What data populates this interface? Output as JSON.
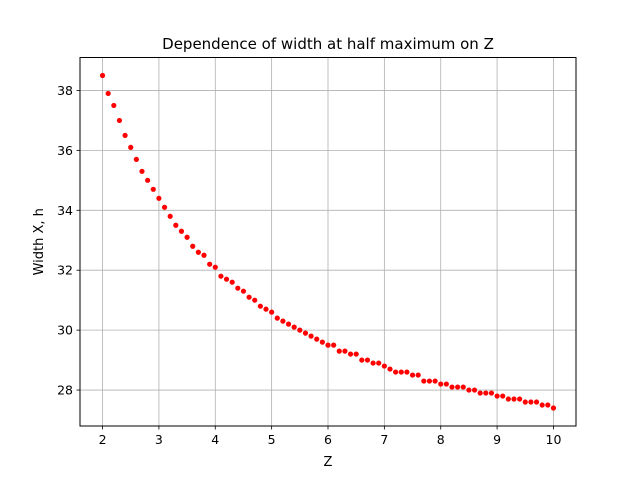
{
  "chart_data": {
    "type": "scatter",
    "title": "Dependence of width at half maximum on Z",
    "xlabel": "Z",
    "ylabel": "Width X, h",
    "xlim": [
      1.6,
      10.4
    ],
    "ylim": [
      26.8,
      39.1
    ],
    "xticks": [
      2,
      3,
      4,
      5,
      6,
      7,
      8,
      9,
      10
    ],
    "yticks": [
      28,
      30,
      32,
      34,
      36,
      38
    ],
    "grid": true,
    "marker_color": "#ff0000",
    "series": [
      {
        "x": [
          2.0,
          2.1,
          2.2,
          2.3,
          2.4,
          2.5,
          2.6,
          2.7,
          2.8,
          2.9,
          3.0,
          3.1,
          3.2,
          3.3,
          3.4,
          3.5,
          3.6,
          3.7,
          3.8,
          3.9,
          4.0,
          4.1,
          4.2,
          4.3,
          4.4,
          4.5,
          4.6,
          4.7,
          4.8,
          4.9,
          5.0,
          5.1,
          5.2,
          5.3,
          5.4,
          5.5,
          5.6,
          5.7,
          5.8,
          5.9,
          6.0,
          6.1,
          6.2,
          6.3,
          6.4,
          6.5,
          6.6,
          6.7,
          6.8,
          6.9,
          7.0,
          7.1,
          7.2,
          7.3,
          7.4,
          7.5,
          7.6,
          7.7,
          7.8,
          7.9,
          8.0,
          8.1,
          8.2,
          8.3,
          8.4,
          8.5,
          8.6,
          8.7,
          8.8,
          8.9,
          9.0,
          9.1,
          9.2,
          9.3,
          9.4,
          9.5,
          9.6,
          9.7,
          9.8,
          9.9,
          10.0
        ],
        "y": [
          38.5,
          37.9,
          37.5,
          37.0,
          36.5,
          36.1,
          35.7,
          35.3,
          35.0,
          34.7,
          34.4,
          34.1,
          33.8,
          33.5,
          33.3,
          33.1,
          32.8,
          32.6,
          32.5,
          32.2,
          32.1,
          31.8,
          31.7,
          31.6,
          31.4,
          31.3,
          31.1,
          31.0,
          30.8,
          30.7,
          30.6,
          30.4,
          30.3,
          30.2,
          30.1,
          30.0,
          29.9,
          29.8,
          29.7,
          29.6,
          29.5,
          29.5,
          29.3,
          29.3,
          29.2,
          29.2,
          29.0,
          29.0,
          28.9,
          28.9,
          28.8,
          28.7,
          28.6,
          28.6,
          28.6,
          28.5,
          28.5,
          28.3,
          28.3,
          28.3,
          28.2,
          28.2,
          28.1,
          28.1,
          28.1,
          28.0,
          28.0,
          27.9,
          27.9,
          27.9,
          27.8,
          27.8,
          27.7,
          27.7,
          27.7,
          27.6,
          27.6,
          27.6,
          27.5,
          27.5,
          27.4
        ]
      }
    ]
  }
}
